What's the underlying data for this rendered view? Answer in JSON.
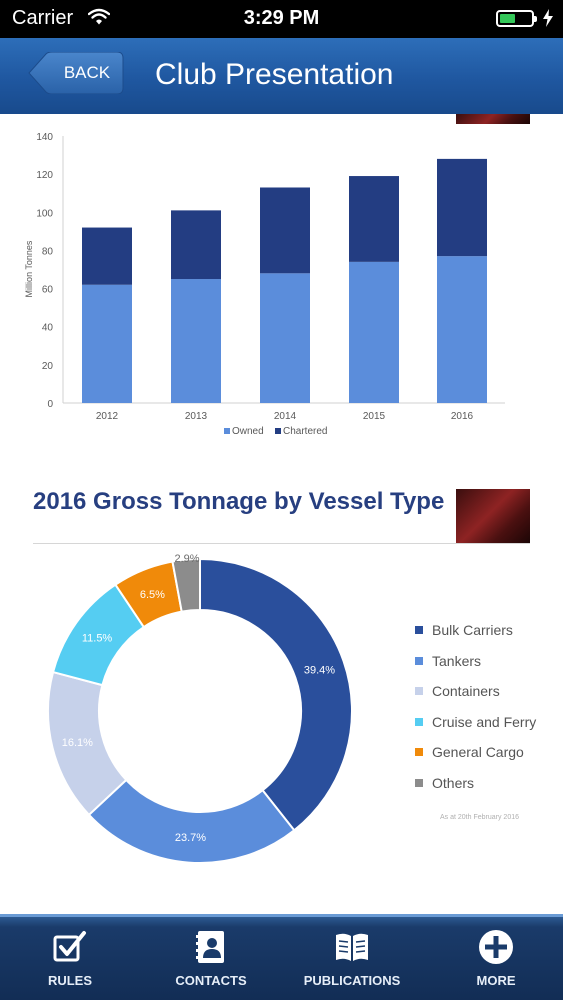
{
  "status_bar": {
    "carrier": "Carrier",
    "time": "3:29 PM",
    "battery_level": 0.5
  },
  "nav": {
    "back_label": "BACK",
    "title": "Club Presentation"
  },
  "stacked_chart": {
    "ylabel": "Million Tonnes",
    "yticks": [
      "0",
      "20",
      "40",
      "60",
      "80",
      "100",
      "120",
      "140"
    ],
    "legend": [
      {
        "label": "Owned",
        "color": "#5b8ddb"
      },
      {
        "label": "Chartered",
        "color": "#233d82"
      }
    ]
  },
  "donut": {
    "title": "2016 Gross Tonnage by Vessel Type",
    "footnote": "As at 20th February 2016",
    "legend": [
      {
        "label": "Bulk Carriers",
        "color": "#2a4f9c"
      },
      {
        "label": "Tankers",
        "color": "#5b8ddb"
      },
      {
        "label": "Containers",
        "color": "#c6d1ea"
      },
      {
        "label": "Cruise and Ferry",
        "color": "#55cdf2"
      },
      {
        "label": "General Cargo",
        "color": "#f08a0a"
      },
      {
        "label": "Others",
        "color": "#8c8c8c"
      }
    ]
  },
  "chart_data": [
    {
      "type": "bar",
      "stacked": true,
      "categories": [
        "2012",
        "2013",
        "2014",
        "2015",
        "2016"
      ],
      "series": [
        {
          "name": "Owned",
          "values": [
            62,
            65,
            68,
            74,
            77
          ]
        },
        {
          "name": "Chartered",
          "values": [
            30,
            36,
            45,
            45,
            51
          ]
        }
      ],
      "ylabel": "Million Tonnes",
      "ylim": [
        0,
        140
      ],
      "legend_position": "bottom",
      "grid": false
    },
    {
      "type": "pie",
      "donut": true,
      "title": "2016 Gross Tonnage by Vessel Type",
      "categories": [
        "Bulk Carriers",
        "Tankers",
        "Containers",
        "Cruise and Ferry",
        "General Cargo",
        "Others"
      ],
      "values": [
        39.4,
        23.7,
        16.1,
        11.5,
        6.5,
        2.9
      ],
      "labels": [
        "39.4%",
        "23.7%",
        "16.1%",
        "11.5%",
        "6.5%",
        "2.9%"
      ],
      "legend_position": "right"
    }
  ],
  "tabs": [
    {
      "label": "RULES",
      "icon": "checkbox-icon"
    },
    {
      "label": "CONTACTS",
      "icon": "contacts-book-icon"
    },
    {
      "label": "PUBLICATIONS",
      "icon": "open-book-icon"
    },
    {
      "label": "MORE",
      "icon": "plus-circle-icon"
    }
  ],
  "colors": {
    "nav": "#1f57a0",
    "tab_bar": "#122d55",
    "owned": "#5b8ddb",
    "chartered": "#233d82",
    "title": "#273f80"
  }
}
